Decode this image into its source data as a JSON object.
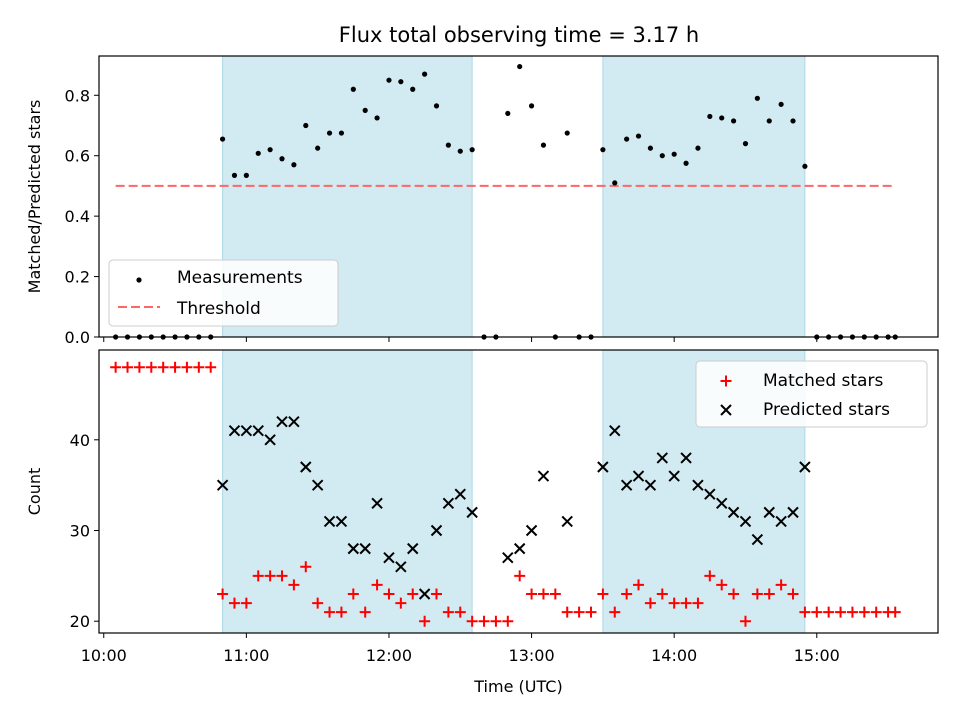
{
  "title": "Flux total observing time = 3.17 h",
  "colors": {
    "shade": "#add8e6",
    "threshold": "#ff6666",
    "matched": "#ff0000",
    "predicted": "#000000",
    "measurement": "#000000"
  },
  "chart_data": [
    {
      "type": "scatter",
      "panel": "top",
      "xlabel": "",
      "ylabel": "Matched/Predicted stars",
      "ylim": [
        0,
        0.93
      ],
      "xlim": [
        "09:58",
        "15:51"
      ],
      "yticks": [
        "0.0",
        "0.2",
        "0.4",
        "0.6",
        "0.8"
      ],
      "ytick_values": [
        0,
        0.2,
        0.4,
        0.6,
        0.8
      ],
      "legend_position": "lower-left",
      "legend": [
        "Measurements",
        "Threshold"
      ],
      "threshold": {
        "value": 0.5,
        "x_range": [
          "10:05",
          "15:33"
        ]
      },
      "shaded_intervals": [
        [
          "10:50",
          "12:35"
        ],
        [
          "13:30",
          "14:55"
        ]
      ],
      "x": [
        "10:05",
        "10:10",
        "10:15",
        "10:20",
        "10:25",
        "10:30",
        "10:35",
        "10:40",
        "10:45",
        "10:50",
        "10:55",
        "11:00",
        "11:05",
        "11:10",
        "11:15",
        "11:20",
        "11:25",
        "11:30",
        "11:35",
        "11:40",
        "11:45",
        "11:50",
        "11:55",
        "12:00",
        "12:05",
        "12:10",
        "12:15",
        "12:20",
        "12:25",
        "12:30",
        "12:35",
        "12:40",
        "12:45",
        "12:50",
        "12:55",
        "13:00",
        "13:05",
        "13:10",
        "13:15",
        "13:20",
        "13:25",
        "13:30",
        "13:35",
        "13:40",
        "13:45",
        "13:50",
        "13:55",
        "14:00",
        "14:05",
        "14:10",
        "14:15",
        "14:20",
        "14:25",
        "14:30",
        "14:35",
        "14:40",
        "14:45",
        "14:50",
        "14:55",
        "15:00",
        "15:05",
        "15:10",
        "15:15",
        "15:20",
        "15:25",
        "15:30",
        "15:33"
      ],
      "values": [
        0,
        0,
        0,
        0,
        0,
        0,
        0,
        0,
        0,
        0.655,
        0.535,
        0.535,
        0.608,
        0.62,
        0.59,
        0.57,
        0.7,
        0.625,
        0.675,
        0.675,
        0.82,
        0.75,
        0.725,
        0.85,
        0.845,
        0.82,
        0.87,
        0.765,
        0.635,
        0.615,
        0.62,
        0,
        0,
        0.74,
        0.895,
        0.765,
        0.635,
        0,
        0.675,
        0,
        0,
        0.62,
        0.51,
        0.655,
        0.665,
        0.625,
        0.6,
        0.605,
        0.575,
        0.625,
        0.73,
        0.725,
        0.715,
        0.64,
        0.79,
        0.715,
        0.77,
        0.715,
        0.565,
        0,
        0,
        0,
        0,
        0,
        0,
        0,
        0
      ]
    },
    {
      "type": "scatter",
      "panel": "bottom",
      "xlabel": "Time (UTC)",
      "ylabel": "Count",
      "ylim": [
        18.7,
        49.9
      ],
      "xlim": [
        "09:58",
        "15:51"
      ],
      "xticks": [
        "10:00",
        "11:00",
        "12:00",
        "13:00",
        "14:00",
        "15:00"
      ],
      "yticks": [
        "20",
        "30",
        "40"
      ],
      "ytick_values": [
        20,
        30,
        40
      ],
      "legend_position": "upper-right",
      "shaded_intervals": [
        [
          "10:50",
          "12:35"
        ],
        [
          "13:30",
          "14:55"
        ]
      ],
      "series": [
        {
          "name": "Matched stars",
          "marker": "+",
          "x": [
            "10:05",
            "10:10",
            "10:15",
            "10:20",
            "10:25",
            "10:30",
            "10:35",
            "10:40",
            "10:45",
            "10:50",
            "10:55",
            "11:00",
            "11:05",
            "11:10",
            "11:15",
            "11:20",
            "11:25",
            "11:30",
            "11:35",
            "11:40",
            "11:45",
            "11:50",
            "11:55",
            "12:00",
            "12:05",
            "12:10",
            "12:15",
            "12:20",
            "12:25",
            "12:30",
            "12:35",
            "12:40",
            "12:45",
            "12:50",
            "12:55",
            "13:00",
            "13:05",
            "13:10",
            "13:15",
            "13:20",
            "13:25",
            "13:30",
            "13:35",
            "13:40",
            "13:45",
            "13:50",
            "13:55",
            "14:00",
            "14:05",
            "14:10",
            "14:15",
            "14:20",
            "14:25",
            "14:30",
            "14:35",
            "14:40",
            "14:45",
            "14:50",
            "14:55",
            "15:00",
            "15:05",
            "15:10",
            "15:15",
            "15:20",
            "15:25",
            "15:30",
            "15:33"
          ],
          "values": [
            48,
            48,
            48,
            48,
            48,
            48,
            48,
            48,
            48,
            23,
            22,
            22,
            25,
            25,
            25,
            24,
            26,
            22,
            21,
            21,
            23,
            21,
            24,
            23,
            22,
            23,
            20,
            23,
            21,
            21,
            20,
            20,
            20,
            20,
            25,
            23,
            23,
            23,
            21,
            21,
            21,
            23,
            21,
            23,
            24,
            22,
            23,
            22,
            22,
            22,
            25,
            24,
            23,
            20,
            23,
            23,
            24,
            23,
            21,
            21,
            21,
            21,
            21,
            21,
            21,
            21,
            21
          ]
        },
        {
          "name": "Predicted stars",
          "marker": "x",
          "x": [
            "10:50",
            "10:55",
            "11:00",
            "11:05",
            "11:10",
            "11:15",
            "11:20",
            "11:25",
            "11:30",
            "11:35",
            "11:40",
            "11:45",
            "11:50",
            "11:55",
            "12:00",
            "12:05",
            "12:10",
            "12:15",
            "12:20",
            "12:25",
            "12:30",
            "12:35",
            "12:50",
            "12:55",
            "13:00",
            "13:05",
            "13:15",
            "13:30",
            "13:35",
            "13:40",
            "13:45",
            "13:50",
            "13:55",
            "14:00",
            "14:05",
            "14:10",
            "14:15",
            "14:20",
            "14:25",
            "14:30",
            "14:35",
            "14:40",
            "14:45",
            "14:50",
            "14:55"
          ],
          "values": [
            35,
            41,
            41,
            41,
            40,
            42,
            42,
            37,
            35,
            31,
            31,
            28,
            28,
            33,
            27,
            26,
            28,
            23,
            30,
            33,
            34,
            32,
            27,
            28,
            30,
            36,
            31,
            37,
            41,
            35,
            36,
            35,
            38,
            36,
            38,
            35,
            34,
            33,
            32,
            31,
            29,
            32,
            31,
            32,
            37
          ]
        }
      ]
    }
  ]
}
